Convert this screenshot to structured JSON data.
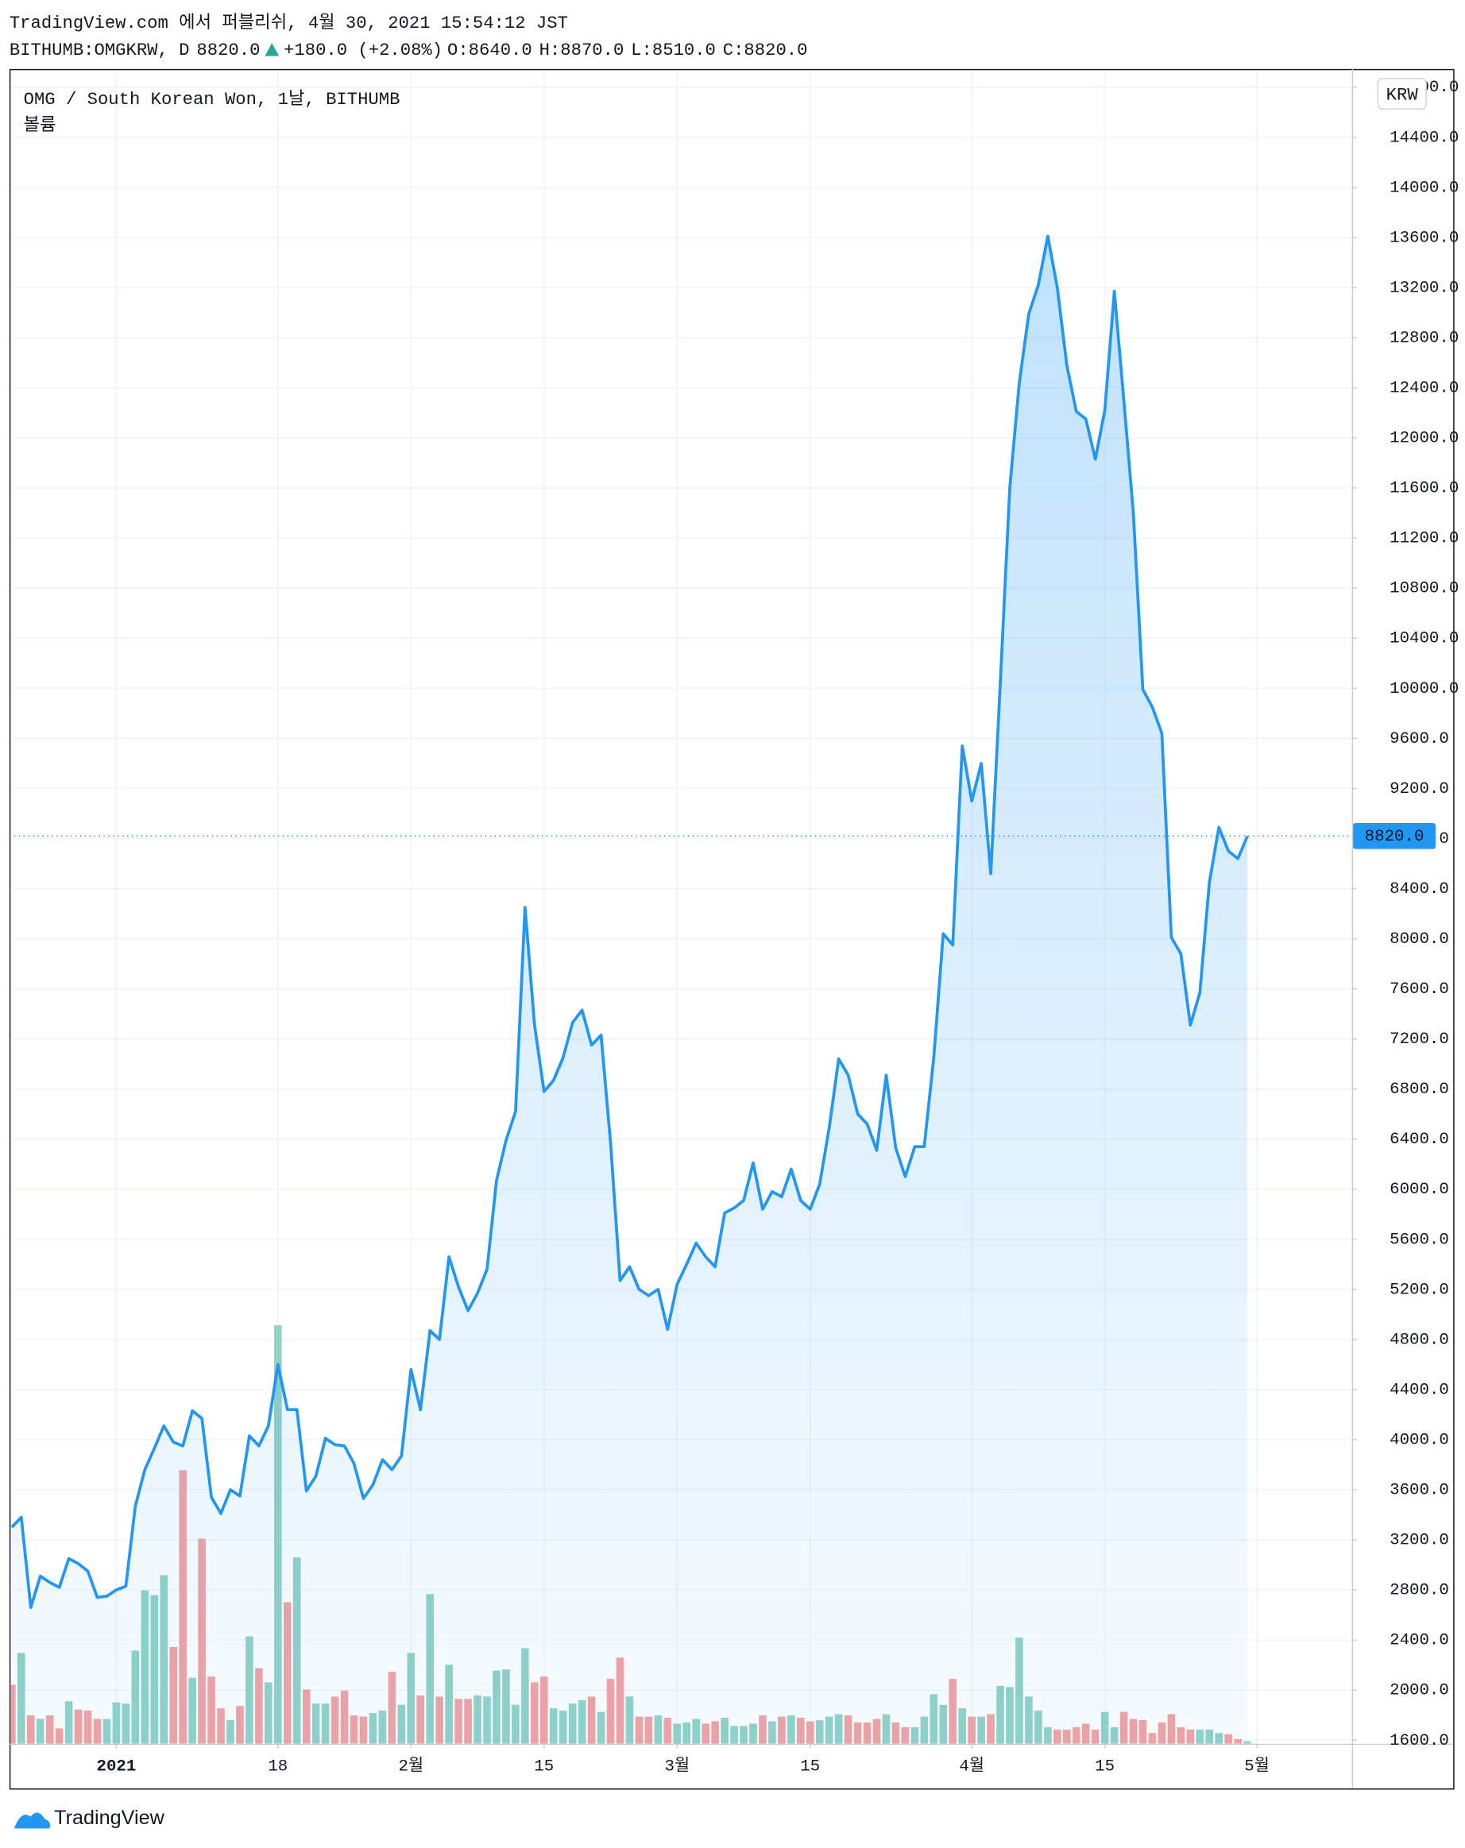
{
  "header": {
    "published": "TradingView.com 에서 퍼블리쉬, 4월 30, 2021 15:54:12 JST",
    "symbol": "BITHUMB:OMGKRW, D",
    "price": "8820.0",
    "change": "+180.0 (+2.08%)",
    "ohlc": [
      {
        "key": "O:",
        "value": "8640.0"
      },
      {
        "key": "H:",
        "value": "8870.0"
      },
      {
        "key": "L:",
        "value": "8510.0"
      },
      {
        "key": "C:",
        "value": "8820.0"
      }
    ]
  },
  "footer": {
    "brand": "TradingView"
  },
  "chart_data": {
    "type": "area",
    "legend": "OMG / South Korean Won, 1날, BITHUMB",
    "volume_label": "볼륨",
    "currency": "KRW",
    "last_label": "8820.0",
    "series": [
      {
        "name": "OMG / South Korean Won",
        "color": "#2196f3",
        "values": [
          3300,
          3380,
          2660,
          2910,
          2860,
          2820,
          3050,
          3010,
          2950,
          2740,
          2750,
          2800,
          2830,
          3470,
          3760,
          3930,
          4110,
          3980,
          3950,
          4230,
          4170,
          3540,
          3410,
          3600,
          3550,
          4030,
          3950,
          4110,
          4600,
          4240,
          4240,
          3590,
          3710,
          4010,
          3960,
          3950,
          3810,
          3530,
          3640,
          3840,
          3760,
          3870,
          4560,
          4240,
          4870,
          4800,
          5460,
          5220,
          5030,
          5170,
          5360,
          6070,
          6390,
          6620,
          8250,
          7310,
          6780,
          6870,
          7050,
          7330,
          7430,
          7150,
          7230,
          6370,
          5270,
          5380,
          5200,
          5150,
          5200,
          4880,
          5240,
          5400,
          5570,
          5460,
          5380,
          5810,
          5850,
          5910,
          6210,
          5840,
          5980,
          5940,
          6160,
          5910,
          5840,
          6040,
          6490,
          7040,
          6910,
          6600,
          6520,
          6310,
          6910,
          6330,
          6100,
          6340,
          6340,
          7050,
          8040,
          7950,
          9540,
          9100,
          9400,
          8520,
          10040,
          11600,
          12440,
          12990,
          13220,
          13610,
          13200,
          12580,
          12210,
          12150,
          11830,
          12220,
          13170,
          12300,
          11400,
          9990,
          9850,
          9640,
          8010,
          7880,
          7310,
          7570,
          8450,
          8890,
          8700,
          8640,
          8820
        ]
      },
      {
        "name": "볼륨",
        "up_color": "#92d2c7",
        "down_color": "#f4a3a2",
        "volume": [
          50,
          77,
          24,
          21,
          24,
          13,
          36,
          29,
          28,
          21,
          21,
          35,
          34,
          79,
          130,
          126,
          143,
          82,
          232,
          56,
          174,
          57,
          30,
          20,
          32,
          91,
          64,
          52,
          355,
          120,
          158,
          46,
          34,
          34,
          40,
          45,
          24,
          23,
          26,
          28,
          61,
          33,
          77,
          41,
          127,
          40,
          67,
          38,
          38,
          41,
          40,
          62,
          63,
          33,
          81,
          52,
          57,
          30,
          28,
          34,
          37,
          40,
          27,
          55,
          73,
          40,
          23,
          23,
          24,
          22,
          17,
          18,
          21,
          17,
          19,
          22,
          15,
          15,
          17,
          24,
          19,
          23,
          24,
          22,
          19,
          20,
          23,
          25,
          24,
          18,
          18,
          21,
          25,
          18,
          14,
          14,
          23,
          42,
          33,
          55,
          30,
          23,
          23,
          25,
          49,
          48,
          90,
          40,
          28,
          14,
          12,
          12,
          14,
          17,
          12,
          27,
          14,
          27,
          21,
          20,
          9,
          18,
          25,
          14,
          12,
          12,
          12,
          9,
          8,
          4,
          2
        ]
      }
    ],
    "xlim": [
      0,
      141
    ],
    "xticks": [
      {
        "value": 11,
        "label": "2021"
      },
      {
        "value": 28,
        "label": "18"
      },
      {
        "value": 42,
        "label": "2월"
      },
      {
        "value": 56,
        "label": "15"
      },
      {
        "value": 70,
        "label": "3월"
      },
      {
        "value": 84,
        "label": "15"
      },
      {
        "value": 101,
        "label": "4월"
      },
      {
        "value": 115,
        "label": "15"
      },
      {
        "value": 131,
        "label": "5월"
      }
    ],
    "ylim": [
      1572,
      14936
    ],
    "yticks": [
      {
        "value": 1600,
        "label": "1600.0"
      },
      {
        "value": 2000,
        "label": "2000.0"
      },
      {
        "value": 2400,
        "label": "2400.0"
      },
      {
        "value": 2800,
        "label": "2800.0"
      },
      {
        "value": 3200,
        "label": "3200.0"
      },
      {
        "value": 3600,
        "label": "3600.0"
      },
      {
        "value": 4000,
        "label": "4000.0"
      },
      {
        "value": 4400,
        "label": "4400.0"
      },
      {
        "value": 4800,
        "label": "4800.0"
      },
      {
        "value": 5200,
        "label": "5200.0"
      },
      {
        "value": 5600,
        "label": "5600.0"
      },
      {
        "value": 6000,
        "label": "6000.0"
      },
      {
        "value": 6400,
        "label": "6400.0"
      },
      {
        "value": 6800,
        "label": "6800.0"
      },
      {
        "value": 7200,
        "label": "7200.0"
      },
      {
        "value": 7600,
        "label": "7600.0"
      },
      {
        "value": 8000,
        "label": "8000.0"
      },
      {
        "value": 8400,
        "label": "8400.0"
      },
      {
        "value": 8800,
        "label": "8800.0"
      },
      {
        "value": 9200,
        "label": "9200.0"
      },
      {
        "value": 9600,
        "label": "9600.0"
      },
      {
        "value": 10000,
        "label": "10000.0"
      },
      {
        "value": 10400,
        "label": "10400.0"
      },
      {
        "value": 10800,
        "label": "10800.0"
      },
      {
        "value": 11200,
        "label": "11200.0"
      },
      {
        "value": 11600,
        "label": "11600.0"
      },
      {
        "value": 12000,
        "label": "12000.0"
      },
      {
        "value": 12400,
        "label": "12400.0"
      },
      {
        "value": 12800,
        "label": "12800.0"
      },
      {
        "value": 13200,
        "label": "13200.0"
      },
      {
        "value": 13600,
        "label": "13600.0"
      },
      {
        "value": 14000,
        "label": "14000.0"
      },
      {
        "value": 14400,
        "label": "14400.0"
      },
      {
        "value": 14800,
        "label": "14800.0"
      }
    ],
    "grid": true
  }
}
